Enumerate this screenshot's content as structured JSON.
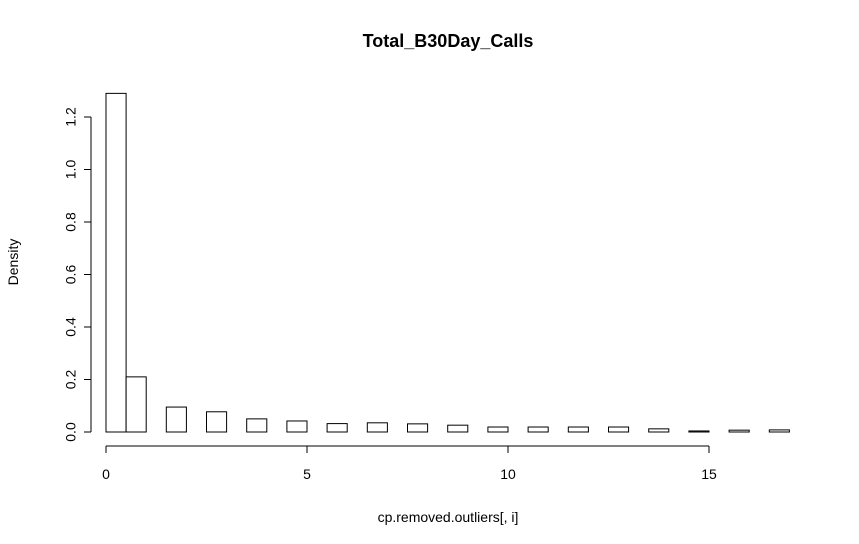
{
  "chart_data": {
    "type": "bar",
    "title": "Total_B30Day_Calls",
    "xlabel": "cp.removed.outliers[, i]",
    "ylabel": "Density",
    "xlim": [
      0,
      17
    ],
    "ylim": [
      0,
      1.3
    ],
    "x_ticks": [
      0,
      5,
      10,
      15
    ],
    "y_ticks": [
      0.0,
      0.2,
      0.4,
      0.6,
      0.8,
      1.0,
      1.2
    ],
    "y_tick_labels": [
      "0.0",
      "0.2",
      "0.4",
      "0.6",
      "0.8",
      "1.0",
      "1.2"
    ],
    "bins": [
      {
        "x0": 0.0,
        "x1": 0.5,
        "value": 1.29
      },
      {
        "x0": 0.5,
        "x1": 1.0,
        "value": 0.21
      },
      {
        "x0": 1.5,
        "x1": 2.0,
        "value": 0.095
      },
      {
        "x0": 2.5,
        "x1": 3.0,
        "value": 0.077
      },
      {
        "x0": 3.5,
        "x1": 4.0,
        "value": 0.05
      },
      {
        "x0": 4.5,
        "x1": 5.0,
        "value": 0.042
      },
      {
        "x0": 5.5,
        "x1": 6.0,
        "value": 0.032
      },
      {
        "x0": 6.5,
        "x1": 7.0,
        "value": 0.035
      },
      {
        "x0": 7.5,
        "x1": 8.0,
        "value": 0.031
      },
      {
        "x0": 8.5,
        "x1": 9.0,
        "value": 0.026
      },
      {
        "x0": 9.5,
        "x1": 10.0,
        "value": 0.019
      },
      {
        "x0": 10.5,
        "x1": 11.0,
        "value": 0.019
      },
      {
        "x0": 11.5,
        "x1": 12.0,
        "value": 0.019
      },
      {
        "x0": 12.5,
        "x1": 13.0,
        "value": 0.019
      },
      {
        "x0": 13.5,
        "x1": 14.0,
        "value": 0.012
      },
      {
        "x0": 14.5,
        "x1": 15.0,
        "value": 0.004
      },
      {
        "x0": 15.5,
        "x1": 16.0,
        "value": 0.007
      },
      {
        "x0": 16.5,
        "x1": 17.0,
        "value": 0.008
      }
    ],
    "bar_fill": "#ffffff",
    "bar_stroke": "#000000",
    "grid": false,
    "legend": "none"
  }
}
